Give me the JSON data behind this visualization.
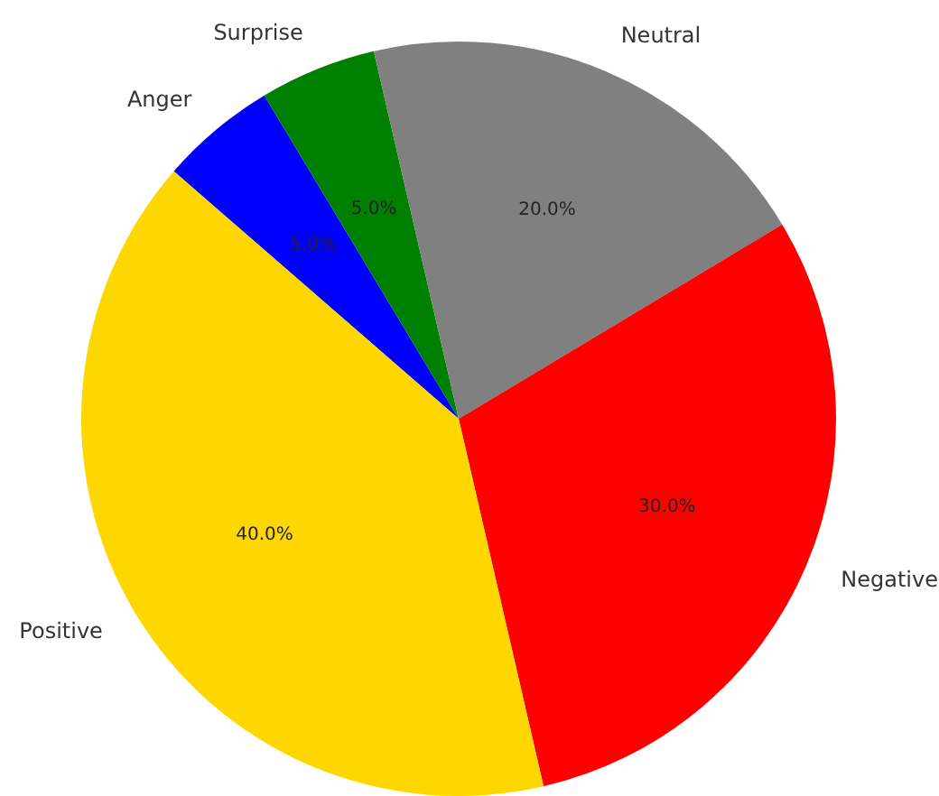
{
  "chart_data": {
    "type": "pie",
    "categories": [
      "Anger",
      "Surprise",
      "Neutral",
      "Negative",
      "Positive"
    ],
    "values": [
      5,
      5,
      20,
      30,
      40
    ],
    "colors": [
      "#0000ff",
      "#008000",
      "#808080",
      "#ff0000",
      "#ffd700"
    ],
    "value_labels": [
      "5.0%",
      "5.0%",
      "20.0%",
      "30.0%",
      "40.0%"
    ],
    "legend": false
  }
}
